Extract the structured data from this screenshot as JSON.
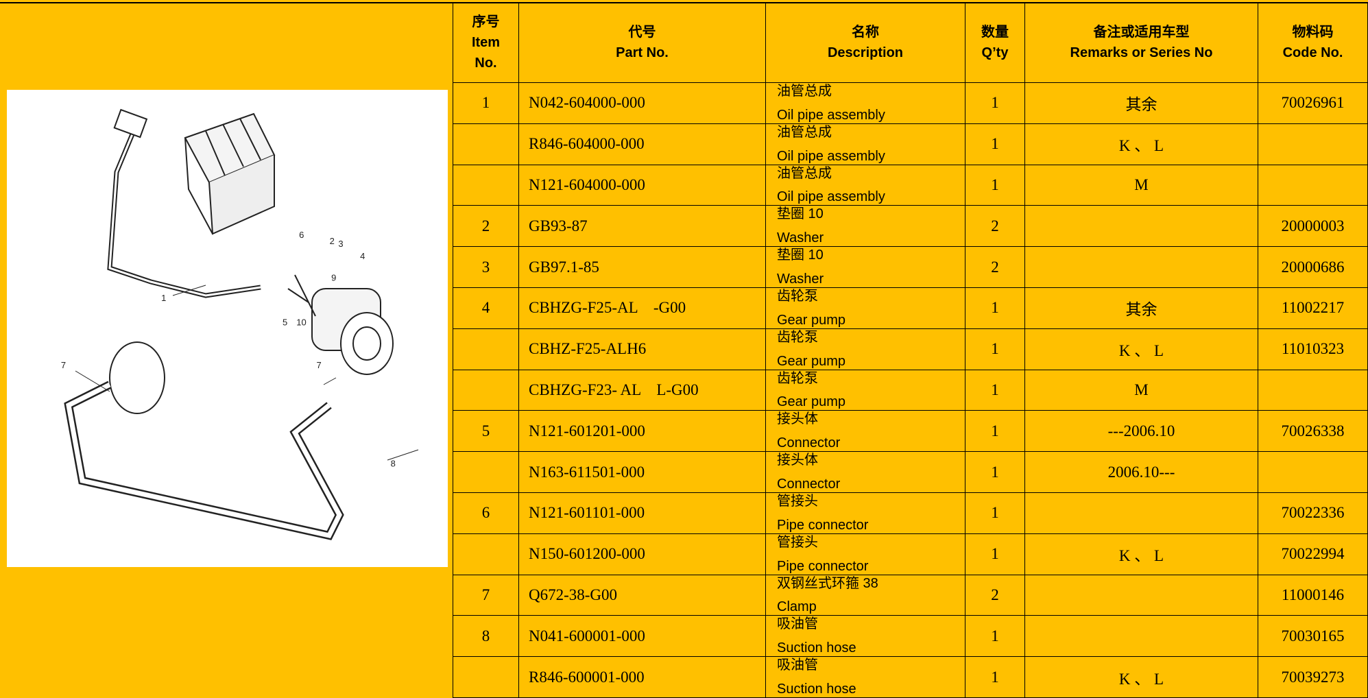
{
  "table": {
    "header": {
      "item": [
        "序号",
        "Item",
        "No."
      ],
      "part_no": [
        "代号",
        "Part No."
      ],
      "description": [
        "名称",
        "Description"
      ],
      "qty": [
        "数量",
        "Q’ty"
      ],
      "remarks": [
        "备注或适用车型",
        "Remarks or Series No"
      ],
      "code": [
        "物料码",
        "Code No."
      ]
    },
    "rows": [
      {
        "item": "1",
        "part_no": "N042-604000-000",
        "desc_zh": "油管总成",
        "desc_en": "Oil pipe assembly",
        "qty": "1",
        "remarks": "其余",
        "code": "70026961"
      },
      {
        "part_no": "R846-604000-000",
        "desc_zh": "油管总成",
        "desc_en": "Oil pipe assembly",
        "qty": "1",
        "remarks": "K 、 L"
      },
      {
        "part_no": "N121-604000-000",
        "desc_zh": "油管总成",
        "desc_en": "Oil pipe assembly",
        "qty": "1",
        "remarks": "M"
      },
      {
        "item": "2",
        "part_no": "GB93-87",
        "desc_zh": "垫圈 10",
        "desc_en": "Washer",
        "qty": "2",
        "code": "20000003"
      },
      {
        "item": "3",
        "part_no": "GB97.1-85",
        "desc_zh": "垫圈 10",
        "desc_en": "Washer",
        "qty": "2",
        "code": "20000686"
      },
      {
        "item": "4",
        "part_no": "CBHZG-F25-AL    -G00",
        "desc_zh": "齿轮泵",
        "desc_en": "Gear pump",
        "qty": "1",
        "remarks": "其余",
        "code": "11002217"
      },
      {
        "part_no": "CBHZ-F25-ALH6",
        "desc_zh": "齿轮泵",
        "desc_en": "Gear pump",
        "qty": "1",
        "remarks": "K 、 L",
        "code": "11010323"
      },
      {
        "part_no": "CBHZG-F23- AL    L-G00",
        "desc_zh": "齿轮泵",
        "desc_en": "Gear pump",
        "qty": "1",
        "remarks": "M"
      },
      {
        "item": "5",
        "part_no": "N121-601201-000",
        "desc_zh": "接头体",
        "desc_en": "Connector",
        "qty": "1",
        "remarks": "---2006.10",
        "code": "70026338"
      },
      {
        "part_no": "N163-611501-000",
        "desc_zh": "接头体",
        "desc_en": "Connector",
        "qty": "1",
        "remarks": "2006.10---"
      },
      {
        "item": "6",
        "part_no": "N121-601101-000",
        "desc_zh": "管接头",
        "desc_en": "Pipe connector",
        "qty": "1",
        "code": "70022336"
      },
      {
        "part_no": "N150-601200-000",
        "desc_zh": "管接头",
        "desc_en": "Pipe connector",
        "qty": "1",
        "remarks": "K 、 L",
        "code": "70022994"
      },
      {
        "item": "7",
        "part_no": "Q672-38-G00",
        "desc_zh": "双钢丝式环箍 38",
        "desc_en": "Clamp",
        "qty": "2",
        "code": "11000146"
      },
      {
        "item": "8",
        "part_no": "N041-600001-000",
        "desc_zh": "吸油管",
        "desc_en": "Suction hose",
        "qty": "1",
        "code": "70030165"
      },
      {
        "part_no": "R846-600001-000",
        "desc_zh": "吸油管",
        "desc_en": "Suction hose",
        "qty": "1",
        "remarks": "K 、 L",
        "code": "70039273"
      }
    ]
  },
  "diagram": {
    "callouts": [
      "1",
      "2",
      "3",
      "4",
      "5",
      "6",
      "7",
      "7",
      "8",
      "9",
      "10"
    ]
  }
}
